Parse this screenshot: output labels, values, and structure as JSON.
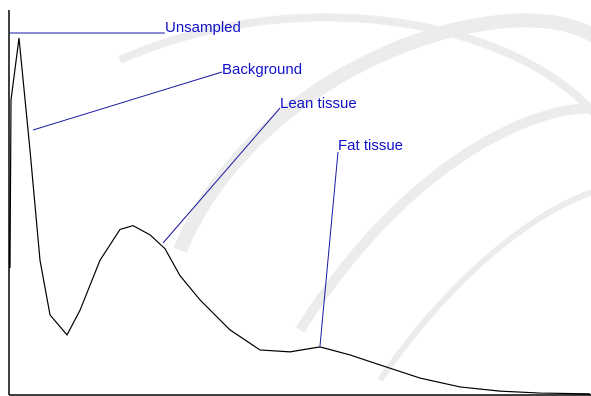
{
  "chart_data": {
    "type": "line",
    "x": [
      0,
      1,
      9,
      20,
      30,
      40,
      57,
      70,
      90,
      110,
      123,
      140,
      155,
      170,
      190,
      220,
      250,
      280,
      310,
      340,
      370,
      410,
      450,
      490,
      530,
      580
    ],
    "values": [
      33,
      76.6,
      92.7,
      63.6,
      35,
      20.8,
      15.6,
      22,
      35,
      43,
      44,
      41.6,
      38,
      31,
      24.7,
      16.9,
      11.7,
      11.2,
      12.5,
      10.4,
      7.8,
      4.4,
      2.1,
      1,
      0.5,
      0.3
    ],
    "color": "#000000",
    "xlim": [
      0,
      580
    ],
    "ylim": [
      0,
      100
    ],
    "annotations": [
      "Unsampled",
      "Background",
      "Lean tissue",
      "Fat tissue"
    ],
    "annotation_color": "#1a1aa0"
  }
}
